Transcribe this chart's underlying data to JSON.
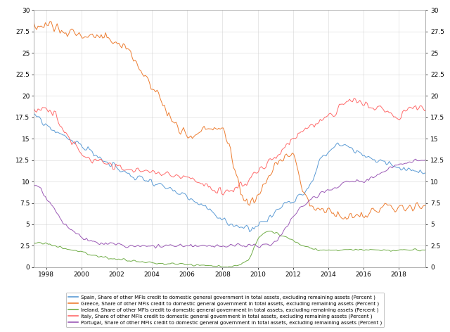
{
  "title": "",
  "ylim": [
    0,
    30
  ],
  "yticks": [
    0,
    2.5,
    5,
    7.5,
    10,
    12.5,
    15,
    17.5,
    20,
    22.5,
    25,
    27.5,
    30
  ],
  "xticks": [
    1998,
    2000,
    2002,
    2004,
    2006,
    2008,
    2010,
    2012,
    2014,
    2016,
    2018
  ],
  "xlim": [
    1997.3,
    2019.5
  ],
  "colors": {
    "Spain": "#5B9BD5",
    "Greece": "#ED7D31",
    "Ireland": "#70AD47",
    "Italy": "#FF6B6B",
    "Portugal": "#9B59B6"
  },
  "legend_labels": [
    "Spain, Share of other MFIs credit to domestic general government in total assets, excluding remaining assets (Percent )",
    "Greece, Share of other MFIs credit to domestic general government in total assets, excluding remaining assets (Percent )",
    "Ireland, Share of other MFIs credit to domestic general government in total assets, excluding remaining assets (Percent )",
    "Italy, Share of other MFIs credit to domestic general government in total assets, excluding remaining assets (Percent )",
    "Portugal, Share of other MFIs credit to domestic general government in total assets, excluding remaining assets (Percent )"
  ],
  "background_color": "#FFFFFF",
  "grid_color": "#CCCCCC"
}
